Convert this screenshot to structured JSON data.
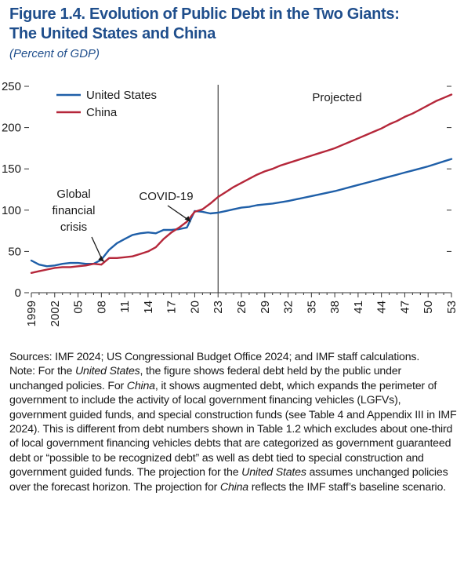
{
  "header": {
    "title_line1": "Figure 1.4. Evolution of Public Debt in the Two Giants:",
    "title_line2": "The United States and China",
    "subtitle": "(Percent of GDP)"
  },
  "chart_data": {
    "type": "line",
    "title": "Figure 1.4. Evolution of Public Debt in the Two Giants: The United States and China",
    "subtitle": "(Percent of GDP)",
    "ylim": [
      0,
      250
    ],
    "xlim": [
      1999,
      2053
    ],
    "yticks": [
      0,
      50,
      100,
      150,
      200,
      250
    ],
    "xticks": [
      1999,
      2002,
      2005,
      2008,
      2011,
      2014,
      2017,
      2020,
      2023,
      2026,
      2029,
      2032,
      2035,
      2038,
      2041,
      2044,
      2047,
      2050,
      2053
    ],
    "xtick_labels": [
      "1999",
      "2002",
      "05",
      "08",
      "11",
      "14",
      "17",
      "20",
      "23",
      "26",
      "29",
      "32",
      "35",
      "38",
      "41",
      "44",
      "47",
      "50",
      "53"
    ],
    "projection_start": 2023,
    "projection_label": "Projected",
    "legend": "top-left",
    "series": [
      {
        "name": "United States",
        "color": "#1f5fa8",
        "x": [
          1999,
          2000,
          2001,
          2002,
          2003,
          2004,
          2005,
          2006,
          2007,
          2008,
          2009,
          2010,
          2011,
          2012,
          2013,
          2014,
          2015,
          2016,
          2017,
          2018,
          2019,
          2020,
          2021,
          2022,
          2023,
          2024,
          2025,
          2026,
          2027,
          2028,
          2029,
          2030,
          2031,
          2032,
          2033,
          2034,
          2035,
          2036,
          2037,
          2038,
          2039,
          2040,
          2041,
          2042,
          2043,
          2044,
          2045,
          2046,
          2047,
          2048,
          2049,
          2050,
          2051,
          2052,
          2053
        ],
        "values": [
          39,
          34,
          32,
          33,
          35,
          36,
          36,
          35,
          35,
          40,
          52,
          60,
          65,
          70,
          72,
          73,
          72,
          76,
          76,
          77,
          79,
          99,
          98,
          96,
          97,
          99,
          101,
          103,
          104,
          106,
          107,
          108,
          109.5,
          111,
          113,
          115,
          117,
          119,
          121,
          123,
          125.5,
          128,
          130.5,
          133,
          135.5,
          138,
          140.5,
          143,
          145.5,
          148,
          150.5,
          153,
          156,
          159,
          162
        ]
      },
      {
        "name": "China",
        "color": "#b5273a",
        "x": [
          1999,
          2000,
          2001,
          2002,
          2003,
          2004,
          2005,
          2006,
          2007,
          2008,
          2009,
          2010,
          2011,
          2012,
          2013,
          2014,
          2015,
          2016,
          2017,
          2018,
          2019,
          2020,
          2021,
          2022,
          2023,
          2024,
          2025,
          2026,
          2027,
          2028,
          2029,
          2030,
          2031,
          2032,
          2033,
          2034,
          2035,
          2036,
          2037,
          2038,
          2039,
          2040,
          2041,
          2042,
          2043,
          2044,
          2045,
          2046,
          2047,
          2048,
          2049,
          2050,
          2051,
          2052,
          2053
        ],
        "values": [
          24,
          26,
          28,
          30,
          31,
          31,
          32,
          33,
          35,
          34,
          42,
          42,
          43,
          44,
          47,
          50,
          55,
          65,
          73,
          79,
          86,
          98,
          101,
          108,
          116,
          122,
          128,
          133,
          138,
          143,
          147,
          150,
          154,
          157,
          160,
          163,
          166,
          169,
          172,
          175,
          179,
          183,
          187,
          191,
          195,
          199,
          204,
          208,
          213,
          217,
          222,
          227,
          232,
          236,
          240
        ]
      }
    ],
    "annotations": [
      {
        "lines": [
          "Global",
          "financial",
          "crisis"
        ],
        "x": 2008,
        "y": 38
      },
      {
        "lines": [
          "COVID-19"
        ],
        "x": 2019,
        "y": 90
      }
    ]
  },
  "notes": {
    "sources": "Sources: IMF 2024; US Congressional Budget Office 2024; and IMF staff calculations.",
    "note_parts": [
      {
        "text": "Note: For the ",
        "italic": false
      },
      {
        "text": "United States",
        "italic": true
      },
      {
        "text": ", the figure shows federal debt held by the public under unchanged policies. For ",
        "italic": false
      },
      {
        "text": "China",
        "italic": true
      },
      {
        "text": ", it shows augmented debt, which expands the perimeter of government to include the activity of local government financing vehicles (LGFVs), government guided funds, and special construction funds (see Table 4 and Appendix III in IMF 2024). This is different from debt numbers shown in Table 1.2 which excludes about one-third of local government financing vehicles debts that are categorized as government guaranteed debt or “possible to be recognized debt” as well as debt tied to special construction and government guided funds. The projection for the ",
        "italic": false
      },
      {
        "text": "United States",
        "italic": true
      },
      {
        "text": " assumes unchanged policies over the forecast horizon. The projection for ",
        "italic": false
      },
      {
        "text": "China",
        "italic": true
      },
      {
        "text": " reflects the IMF staff’s baseline scenario.",
        "italic": false
      }
    ]
  }
}
